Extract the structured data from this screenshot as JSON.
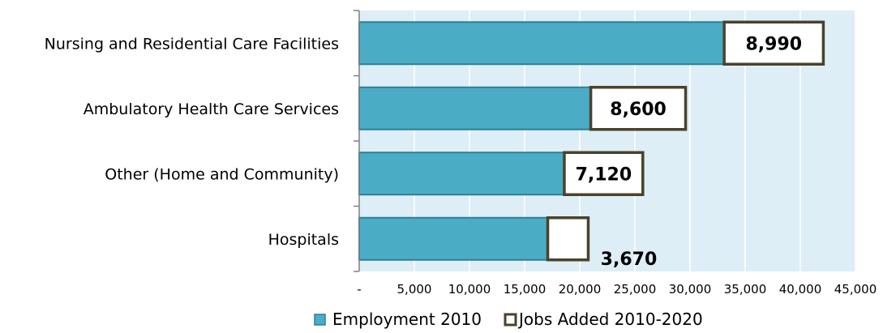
{
  "chart_data": {
    "type": "bar",
    "orientation": "horizontal",
    "stacked": true,
    "categories": [
      "Nursing and Residential Care Facilities",
      "Ambulatory Health Care Services",
      "Other (Home and Community)",
      "Hospitals"
    ],
    "series": [
      {
        "name": "Employment 2010",
        "values": [
          33100,
          21000,
          18600,
          17100
        ]
      },
      {
        "name": "Jobs Added 2010-2020",
        "values": [
          8990,
          8600,
          7120,
          3670
        ]
      }
    ],
    "data_labels": [
      "8,990",
      "8,600",
      "7,120",
      "3,670"
    ],
    "xlim": [
      0,
      45000
    ],
    "xticks": [
      0,
      5000,
      10000,
      15000,
      20000,
      25000,
      30000,
      35000,
      40000,
      45000
    ],
    "xtick_labels": [
      "-",
      "5,000",
      "10,000",
      "15,000",
      "20,000",
      "25,000",
      "30,000",
      "35,000",
      "40,000",
      "45,000"
    ],
    "gridlines": "vertical",
    "legend_position": "bottom",
    "colors": {
      "plot_background": "#deeef6",
      "employment": "#4bacc6",
      "employment_border": "#2d7f96",
      "jobs_added_fill": "#ffffff",
      "jobs_added_border": "#4a422a"
    }
  }
}
